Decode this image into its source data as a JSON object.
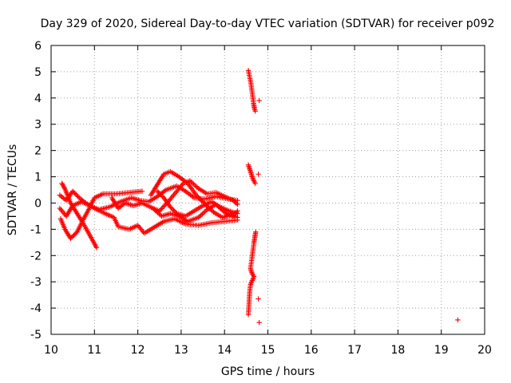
{
  "chart_data": {
    "type": "scatter",
    "title": "Day 329 of 2020, Sidereal Day-to-day VTEC variation (SDTVAR) for receiver p092",
    "xlabel": "GPS time / hours",
    "ylabel": "SDTVAR / TECUs",
    "xlim": [
      10,
      20
    ],
    "ylim": [
      -5,
      6
    ],
    "xticks": [
      10,
      11,
      12,
      13,
      14,
      15,
      16,
      17,
      18,
      19,
      20
    ],
    "yticks": [
      -5,
      -4,
      -3,
      -2,
      -1,
      0,
      1,
      2,
      3,
      4,
      5,
      6
    ],
    "grid": true,
    "marker": "+",
    "color": "#ff0000",
    "tracks": [
      {
        "name": "track-a",
        "points": [
          [
            10.25,
            0.75
          ],
          [
            10.33,
            0.5
          ],
          [
            10.45,
            0.0
          ],
          [
            10.6,
            -0.4
          ],
          [
            10.75,
            -0.8
          ],
          [
            10.9,
            -1.25
          ],
          [
            11.05,
            -1.7
          ]
        ]
      },
      {
        "name": "track-b",
        "points": [
          [
            10.22,
            -0.6
          ],
          [
            10.32,
            -1.0
          ],
          [
            10.45,
            -1.35
          ],
          [
            10.6,
            -1.1
          ],
          [
            10.72,
            -0.7
          ],
          [
            10.85,
            -0.3
          ],
          [
            11.0,
            0.2
          ],
          [
            11.2,
            0.35
          ],
          [
            11.5,
            0.35
          ],
          [
            11.8,
            0.4
          ],
          [
            12.1,
            0.45
          ]
        ]
      },
      {
        "name": "track-c",
        "points": [
          [
            10.2,
            0.3
          ],
          [
            10.35,
            0.1
          ],
          [
            10.5,
            0.45
          ],
          [
            10.65,
            0.2
          ],
          [
            10.8,
            0.0
          ],
          [
            11.0,
            -0.2
          ],
          [
            11.25,
            -0.4
          ],
          [
            11.45,
            -0.55
          ],
          [
            11.55,
            -0.9
          ],
          [
            11.8,
            -1.0
          ],
          [
            12.0,
            -0.85
          ],
          [
            12.15,
            -1.15
          ],
          [
            12.35,
            -0.95
          ],
          [
            12.6,
            -0.7
          ],
          [
            12.85,
            -0.6
          ],
          [
            13.1,
            -0.8
          ],
          [
            13.4,
            -0.85
          ],
          [
            13.7,
            -0.75
          ],
          [
            14.0,
            -0.7
          ],
          [
            14.3,
            -0.65
          ]
        ]
      },
      {
        "name": "track-d",
        "points": [
          [
            10.2,
            -0.2
          ],
          [
            10.35,
            -0.5
          ],
          [
            10.5,
            -0.1
          ],
          [
            10.7,
            0.05
          ],
          [
            10.9,
            -0.1
          ],
          [
            11.1,
            -0.25
          ],
          [
            11.35,
            -0.15
          ],
          [
            11.6,
            0.05
          ],
          [
            11.85,
            0.2
          ],
          [
            12.05,
            0.1
          ],
          [
            12.25,
            0.05
          ],
          [
            12.45,
            0.25
          ],
          [
            12.65,
            0.5
          ],
          [
            12.9,
            0.65
          ],
          [
            13.1,
            0.45
          ],
          [
            13.3,
            0.2
          ],
          [
            13.55,
            0.15
          ],
          [
            13.8,
            0.25
          ],
          [
            14.1,
            0.15
          ],
          [
            14.3,
            0.1
          ]
        ]
      },
      {
        "name": "track-e",
        "points": [
          [
            11.4,
            0.2
          ],
          [
            11.55,
            -0.2
          ],
          [
            11.7,
            0.0
          ],
          [
            11.9,
            -0.1
          ],
          [
            12.1,
            0.0
          ],
          [
            12.35,
            -0.2
          ],
          [
            12.55,
            -0.5
          ],
          [
            12.75,
            -0.4
          ],
          [
            12.95,
            -0.5
          ],
          [
            13.15,
            -0.7
          ],
          [
            13.4,
            -0.55
          ],
          [
            13.6,
            -0.25
          ],
          [
            13.8,
            -0.05
          ],
          [
            14.0,
            -0.35
          ],
          [
            14.2,
            -0.5
          ],
          [
            14.3,
            -0.3
          ]
        ]
      },
      {
        "name": "track-f",
        "points": [
          [
            12.3,
            0.3
          ],
          [
            12.45,
            0.7
          ],
          [
            12.6,
            1.1
          ],
          [
            12.75,
            1.2
          ],
          [
            12.95,
            1.0
          ],
          [
            13.15,
            0.75
          ],
          [
            13.35,
            0.3
          ],
          [
            13.55,
            -0.05
          ],
          [
            13.75,
            -0.35
          ],
          [
            13.95,
            -0.55
          ],
          [
            14.15,
            -0.45
          ],
          [
            14.3,
            -0.55
          ]
        ]
      },
      {
        "name": "track-g",
        "points": [
          [
            12.35,
            -0.2
          ],
          [
            12.5,
            -0.3
          ],
          [
            12.7,
            0.05
          ],
          [
            12.85,
            0.35
          ],
          [
            13.05,
            0.75
          ],
          [
            13.2,
            0.85
          ],
          [
            13.4,
            0.55
          ],
          [
            13.6,
            0.35
          ],
          [
            13.8,
            0.4
          ],
          [
            14.0,
            0.25
          ],
          [
            14.2,
            0.1
          ],
          [
            14.3,
            -0.05
          ]
        ]
      },
      {
        "name": "track-h",
        "points": [
          [
            12.45,
            0.45
          ],
          [
            12.6,
            0.2
          ],
          [
            12.75,
            -0.15
          ],
          [
            12.9,
            -0.4
          ],
          [
            13.1,
            -0.5
          ],
          [
            13.3,
            -0.3
          ],
          [
            13.5,
            -0.1
          ],
          [
            13.7,
            0.05
          ],
          [
            13.9,
            -0.15
          ],
          [
            14.1,
            -0.3
          ],
          [
            14.3,
            -0.4
          ]
        ]
      },
      {
        "name": "track-i",
        "points": [
          [
            14.55,
            5.05
          ],
          [
            14.58,
            4.8
          ],
          [
            14.61,
            4.55
          ],
          [
            14.63,
            4.3
          ],
          [
            14.65,
            4.05
          ],
          [
            14.67,
            3.8
          ],
          [
            14.69,
            3.6
          ],
          [
            14.71,
            3.5
          ]
        ]
      },
      {
        "name": "track-j",
        "points": [
          [
            14.55,
            1.45
          ],
          [
            14.58,
            1.3
          ],
          [
            14.61,
            1.15
          ],
          [
            14.64,
            1.0
          ],
          [
            14.66,
            0.9
          ],
          [
            14.69,
            0.8
          ],
          [
            14.71,
            0.75
          ]
        ]
      },
      {
        "name": "track-k",
        "points": [
          [
            14.72,
            -1.1
          ],
          [
            14.7,
            -1.3
          ],
          [
            14.68,
            -1.5
          ],
          [
            14.66,
            -1.75
          ],
          [
            14.64,
            -2.0
          ],
          [
            14.62,
            -2.25
          ],
          [
            14.6,
            -2.5
          ],
          [
            14.64,
            -2.7
          ],
          [
            14.68,
            -2.8
          ],
          [
            14.64,
            -2.95
          ],
          [
            14.6,
            -3.1
          ],
          [
            14.58,
            -3.4
          ],
          [
            14.57,
            -3.7
          ],
          [
            14.56,
            -4.0
          ],
          [
            14.55,
            -4.25
          ]
        ]
      },
      {
        "name": "track-l",
        "points": [
          [
            14.8,
            3.9
          ],
          [
            14.78,
            1.1
          ],
          [
            14.78,
            -3.65
          ],
          [
            14.8,
            -4.55
          ],
          [
            19.38,
            -4.45
          ]
        ]
      }
    ]
  }
}
